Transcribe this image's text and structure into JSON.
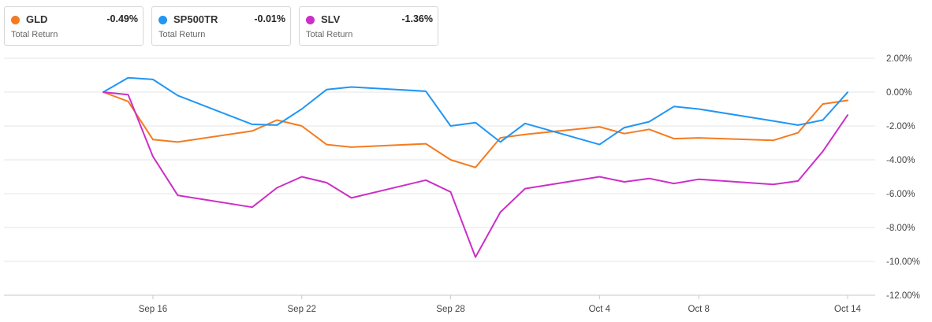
{
  "legend": [
    {
      "name": "GLD",
      "value": "-0.49%",
      "sub": "Total Return",
      "color": "#f47b20"
    },
    {
      "name": "SP500TR",
      "value": "-0.01%",
      "sub": "Total Return",
      "color": "#2196f3"
    },
    {
      "name": "SLV",
      "value": "-1.36%",
      "sub": "Total Return",
      "color": "#cc2fc8"
    }
  ],
  "chart_data": {
    "type": "line",
    "title": "",
    "xlabel": "",
    "ylabel": "",
    "ylim": [
      -12,
      2
    ],
    "yticks": [
      2,
      0,
      -2,
      -4,
      -6,
      -8,
      -10,
      -12
    ],
    "ytick_labels": [
      "2.00%",
      "0.00%",
      "-2.00%",
      "-4.00%",
      "-6.00%",
      "-8.00%",
      "-10.00%",
      "-12.00%"
    ],
    "x_dates": [
      "Sep 14",
      "Sep 15",
      "Sep 16",
      "Sep 17",
      "Sep 20",
      "Sep 21",
      "Sep 22",
      "Sep 23",
      "Sep 24",
      "Sep 27",
      "Sep 28",
      "Sep 29",
      "Sep 30",
      "Oct 1",
      "Oct 4",
      "Oct 5",
      "Oct 6",
      "Oct 7",
      "Oct 8",
      "Oct 11",
      "Oct 12",
      "Oct 13",
      "Oct 14"
    ],
    "x_index": [
      0,
      1,
      2,
      3,
      6,
      7,
      8,
      9,
      10,
      13,
      14,
      15,
      16,
      17,
      20,
      21,
      22,
      23,
      24,
      27,
      28,
      29,
      30
    ],
    "xtick_labels": [
      "Sep 16",
      "Sep 22",
      "Sep 28",
      "Oct 4",
      "Oct 8",
      "Oct 14"
    ],
    "xtick_index": [
      2,
      8,
      14,
      20,
      24,
      30
    ],
    "series": [
      {
        "name": "GLD",
        "color": "#f47b20",
        "values": [
          0.0,
          -0.55,
          -2.8,
          -2.95,
          -2.3,
          -1.65,
          -2.0,
          -3.1,
          -3.25,
          -3.05,
          -4.0,
          -4.45,
          -2.7,
          -2.5,
          -2.05,
          -2.45,
          -2.2,
          -2.75,
          -2.7,
          -2.85,
          -2.4,
          -0.7,
          -0.49
        ]
      },
      {
        "name": "SP500TR",
        "color": "#2196f3",
        "values": [
          0.0,
          0.85,
          0.75,
          -0.2,
          -1.9,
          -1.95,
          -1.0,
          0.15,
          0.3,
          0.05,
          -2.0,
          -1.8,
          -2.95,
          -1.85,
          -3.1,
          -2.1,
          -1.75,
          -0.85,
          -1.0,
          -1.7,
          -1.95,
          -1.65,
          -0.01
        ]
      },
      {
        "name": "SLV",
        "color": "#cc2fc8",
        "values": [
          0.0,
          -0.15,
          -3.8,
          -6.1,
          -6.8,
          -5.65,
          -5.0,
          -5.35,
          -6.25,
          -5.2,
          -5.9,
          -9.75,
          -7.1,
          -5.7,
          -5.0,
          -5.3,
          -5.1,
          -5.4,
          -5.15,
          -5.45,
          -5.25,
          -3.5,
          -1.36
        ]
      }
    ]
  }
}
